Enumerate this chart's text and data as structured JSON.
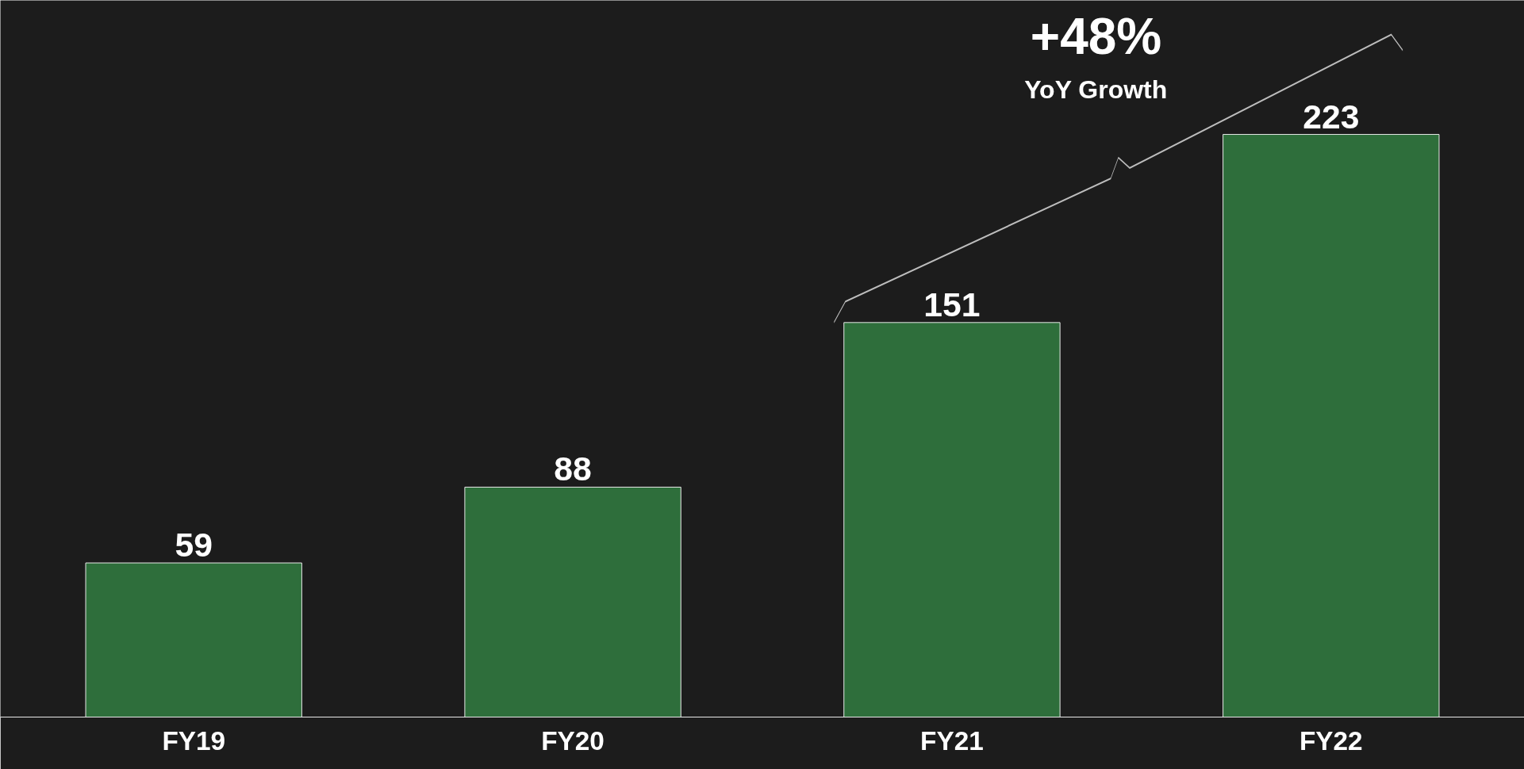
{
  "chart_data": {
    "type": "bar",
    "categories": [
      "FY19",
      "FY20",
      "FY21",
      "FY22"
    ],
    "values": [
      59,
      88,
      151,
      223
    ],
    "color": "#2e6e3b",
    "data_labels": true,
    "grid": false,
    "annotations": [
      "+48%",
      "YoY Growth"
    ]
  }
}
